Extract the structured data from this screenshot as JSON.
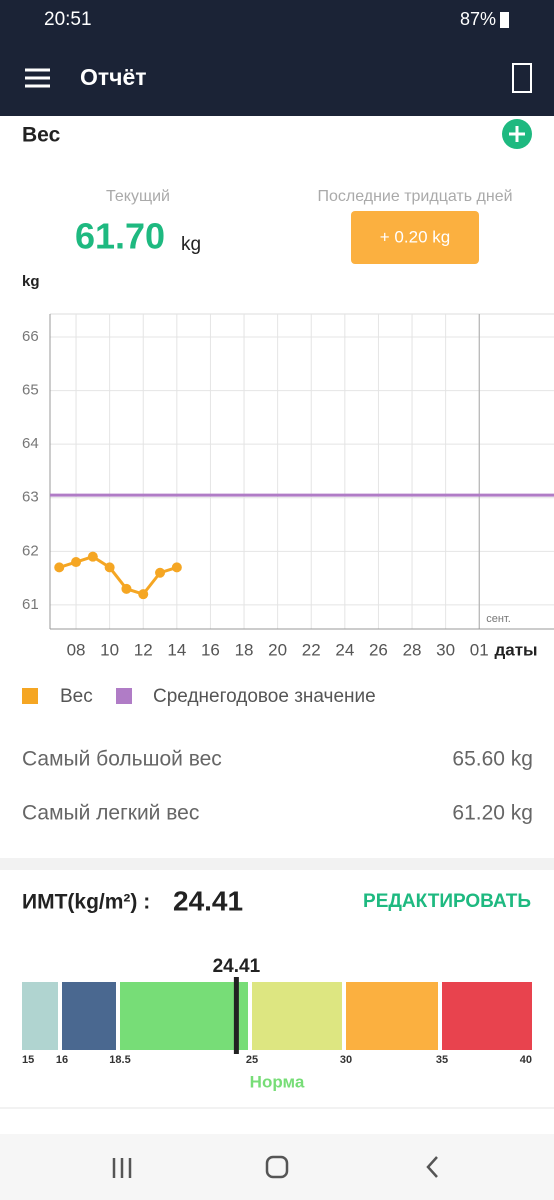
{
  "status_bar": {
    "time": "20:51",
    "battery": "87%"
  },
  "app_bar": {
    "title": "Отчёт"
  },
  "weight": {
    "title": "Вес",
    "current_label": "Текущий",
    "current_value": "61.70",
    "current_unit": "kg",
    "change_label": "Последние тридцать дней",
    "change_value": "+ 0.20 kg"
  },
  "chart_data": {
    "type": "line",
    "y_label": "kg",
    "x_label": "даты",
    "x": [
      7,
      8,
      9,
      10,
      11,
      12,
      13,
      14
    ],
    "series": [
      {
        "name": "Вес",
        "color": "#f5a623",
        "values": [
          61.7,
          61.8,
          61.9,
          61.7,
          61.3,
          61.2,
          61.6,
          61.7
        ]
      }
    ],
    "average": {
      "name": "Среднегодовое значение",
      "color": "#b07cc6",
      "value": 63.05
    },
    "annotations": [
      {
        "text": "сент.",
        "x": 32
      }
    ],
    "xlim": [
      6.45,
      36.45
    ],
    "xticks": [
      {
        "value": 8,
        "label": "08"
      },
      10,
      12,
      14,
      16,
      18,
      20,
      22,
      24,
      26,
      28,
      30,
      {
        "value": 32,
        "label": "01"
      }
    ],
    "ylim": [
      60.55,
      66.43
    ],
    "yticks": [
      61,
      62,
      63,
      64,
      65,
      66
    ],
    "grid": true
  },
  "stats": [
    {
      "label": "Самый большой вес",
      "value": "65.60 kg"
    },
    {
      "label": "Самый легкий вес",
      "value": "61.20 kg"
    }
  ],
  "bmi": {
    "label": "ИМТ(kg/m²) :",
    "value": 24.41,
    "edit": "РЕДАКТИРОВАТЬ",
    "category": "Норма",
    "bounds": [
      15,
      16,
      18.5,
      25,
      30,
      35,
      40
    ],
    "colors": [
      "#b0d4d0",
      "#4a6890",
      "#77dd77",
      "#dde681",
      "#fbb040",
      "#e8434e"
    ]
  }
}
